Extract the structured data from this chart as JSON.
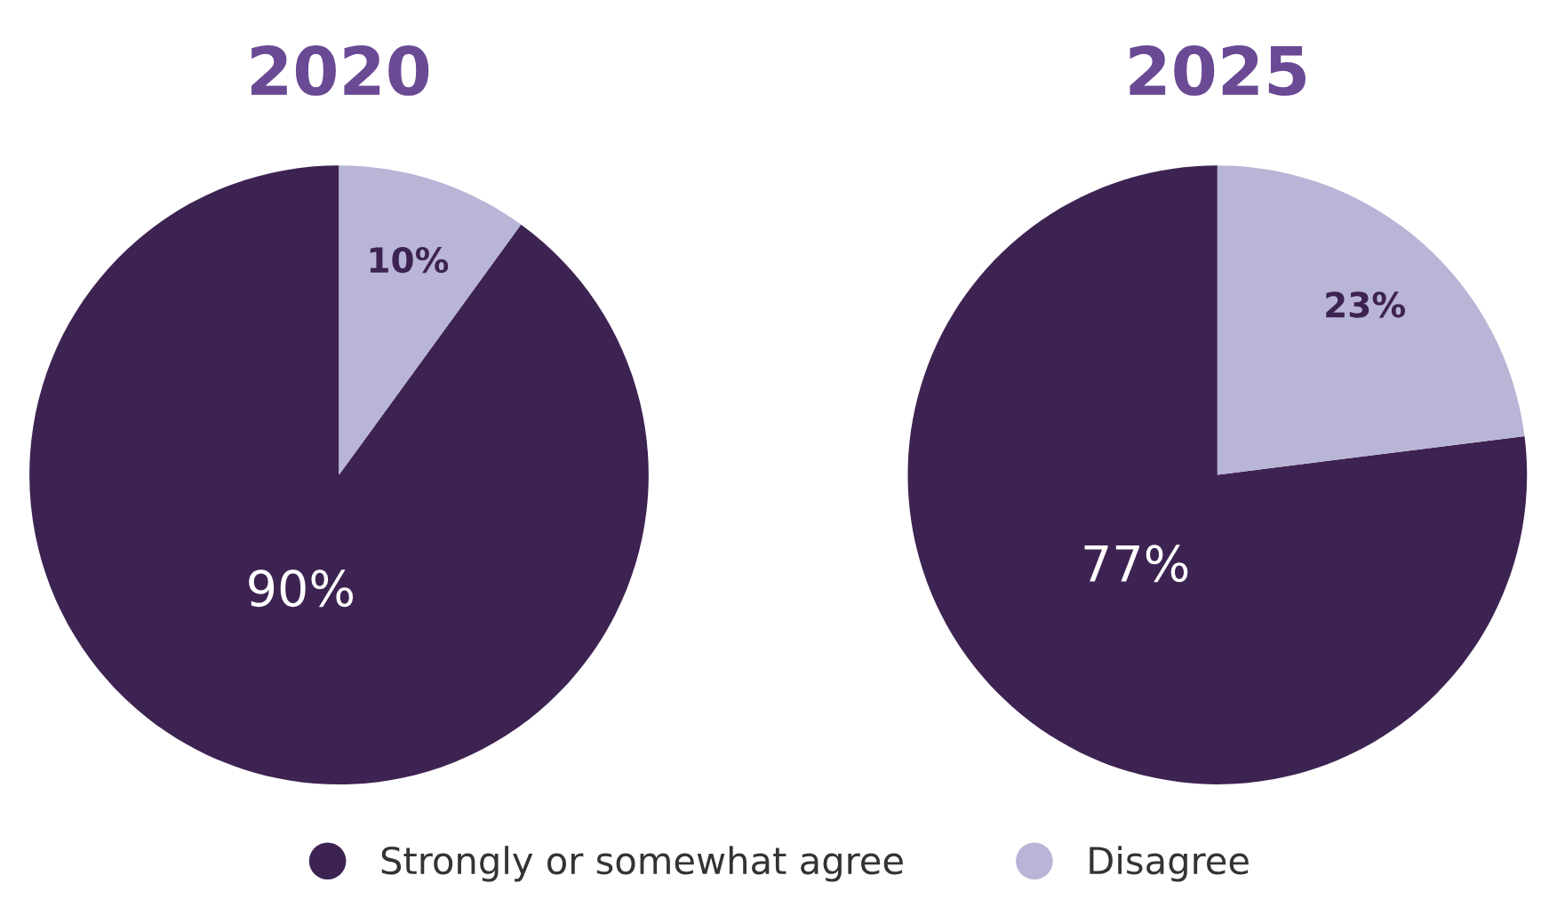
{
  "chart_data": [
    {
      "type": "pie",
      "title": "2020",
      "categories": [
        "Strongly or somewhat agree",
        "Disagree"
      ],
      "values": [
        90,
        10
      ],
      "value_labels": [
        "90%",
        "10%"
      ],
      "colors": [
        "#3d2352",
        "#b9b5d6"
      ],
      "legend": "bottom"
    },
    {
      "type": "pie",
      "title": "2025",
      "values": [
        77,
        23
      ],
      "value_labels": [
        "77%",
        "23%"
      ],
      "colors": [
        "#3d2352",
        "#b9b5d6"
      ]
    }
  ]
}
